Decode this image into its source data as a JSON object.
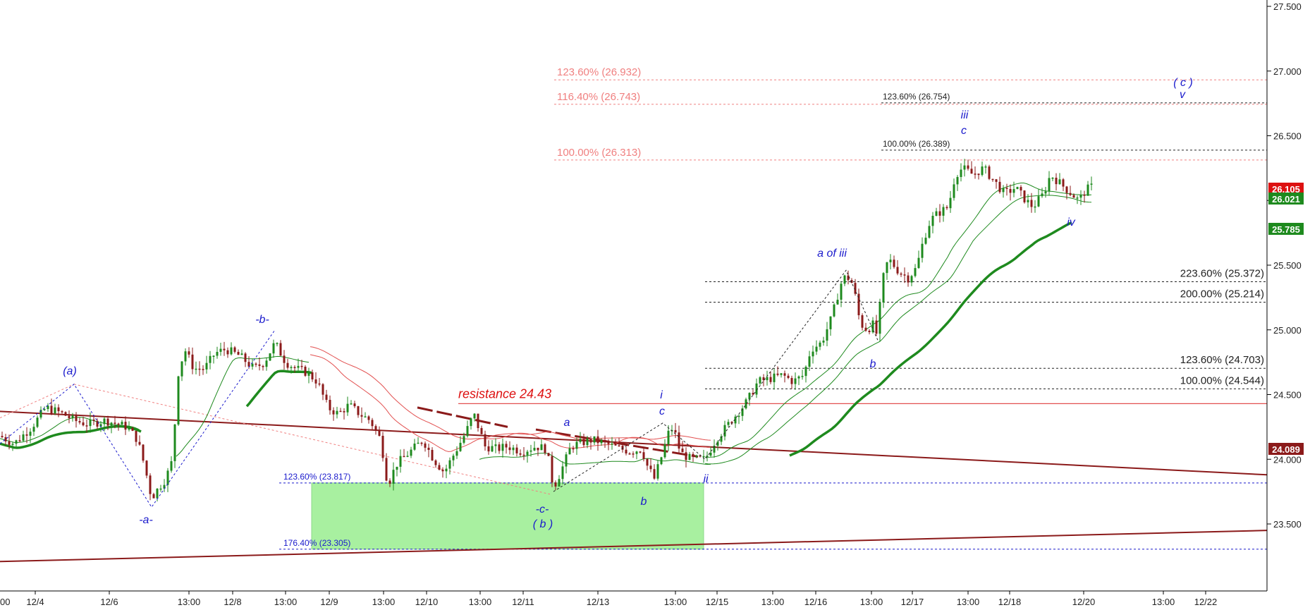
{
  "chart_data": {
    "type": "candlestick",
    "title": "",
    "xlabel": "",
    "ylabel": "",
    "ylim": [
      22.8,
      27.55
    ],
    "grid": false,
    "y_ticks": [
      "27.500",
      "27.000",
      "26.500",
      "26.000",
      "25.500",
      "25.000",
      "24.500",
      "24.000",
      "23.500"
    ],
    "x_ticks": [
      "12/4",
      "12/6",
      "13:00",
      "12/8",
      "13:00",
      "12/9",
      "13:00",
      "12/10",
      "13:00",
      "12/11",
      "12/13",
      "13:00",
      "12/15",
      "13:00",
      "12/16",
      "13:00",
      "12/17",
      "13:00",
      "12/18",
      "12/20",
      "13:00",
      "12/22"
    ],
    "x_tick_left_partial": "00",
    "price_labels": [
      {
        "text": "26.105",
        "value": 26.105,
        "color": "#dd1111"
      },
      {
        "text": "26.021",
        "value": 26.021,
        "color": "#1e8a1e"
      },
      {
        "text": "25.785",
        "value": 25.785,
        "color": "#1e8a1e"
      },
      {
        "text": "24.089",
        "value": 24.089,
        "color": "#8b1a1a"
      }
    ],
    "resistance": {
      "label": "resistance 24.43",
      "value": 24.43
    },
    "fib_levels_right": [
      {
        "label": "123.60% (26.932)",
        "value": 26.932
      },
      {
        "label": "116.40% (26.743)",
        "value": 26.743
      },
      {
        "label": "100.00% (26.313)",
        "value": 26.313
      }
    ],
    "fib_levels_upper": [
      {
        "label": "123.60% (26.754)",
        "value": 26.754
      },
      {
        "label": "100.00% (26.389)",
        "value": 26.389
      }
    ],
    "fib_levels_mid": [
      {
        "label": "223.60% (25.372)",
        "value": 25.372
      },
      {
        "label": "200.00% (25.214)",
        "value": 25.214
      },
      {
        "label": "123.60% (24.703)",
        "value": 24.703
      },
      {
        "label": "100.00% (24.544)",
        "value": 24.544
      }
    ],
    "fib_levels_box": [
      {
        "label": "123.60% (23.817)",
        "value": 23.817
      },
      {
        "label": "176.40% (23.305)",
        "value": 23.305
      }
    ],
    "wave_labels": [
      "(a)",
      "-a-",
      "-b-",
      "-c-",
      "( b )",
      "a",
      "b",
      "i",
      "c",
      "ii",
      "a of iii",
      "b",
      "iii",
      "c",
      "iv",
      "( c )",
      "v"
    ]
  }
}
